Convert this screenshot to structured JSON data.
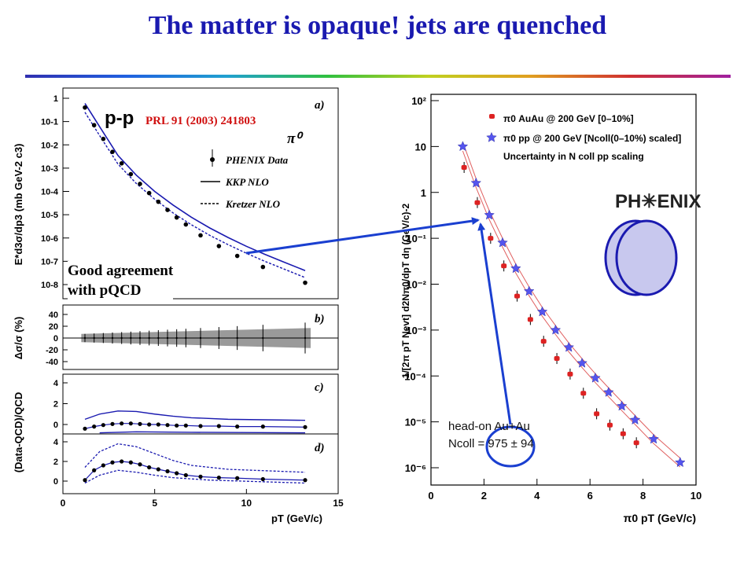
{
  "title": "The matter is opaque! jets are quenched",
  "left_panel": {
    "label_pp": "p-p",
    "label_ref": "PRL 91 (2003) 241803",
    "label_pi0": "π⁰",
    "legend": [
      "PHENIX Data",
      "KKP NLO",
      "Kretzer NLO"
    ],
    "panel_labels": [
      "a)",
      "b)",
      "c)",
      "d)"
    ],
    "xlabel": "pT (GeV/c)",
    "ylabel_a": "E*d3σ/dp3 (mb GeV-2 c3)",
    "ylabel_b": "Δσ/σ (%)",
    "ylabel_cd": "(Data-QCD)/QCD",
    "xticks": [
      "0",
      "5",
      "10",
      "15"
    ],
    "yticks_a": [
      "1",
      "10-1",
      "10-2",
      "10-3",
      "10-4",
      "10-5",
      "10-6",
      "10-7",
      "10-8"
    ],
    "yticks_b": [
      "40",
      "20",
      "0",
      "-20",
      "-40"
    ],
    "yticks_c": [
      "4",
      "2",
      "0"
    ],
    "yticks_d": [
      "4",
      "2",
      "0"
    ]
  },
  "note": {
    "line1": "Good agreement",
    "line2": "with pQCD"
  },
  "right_panel": {
    "legend": [
      "π0 AuAu @ 200 GeV [0–10%]",
      "π0 pp @ 200 GeV [Ncoll(0–10%) scaled]",
      "Uncertainty in N coll pp scaling"
    ],
    "logo": "PH✳ENIX",
    "xlabel": "π0 pT (GeV/c)",
    "ylabel": "1/[2π pT Nevt] d2Nπ0/dpT dη (GeV/c)-2",
    "xticks": [
      "0",
      "2",
      "4",
      "6",
      "8",
      "10"
    ],
    "yticks": [
      "10²",
      "10",
      "1",
      "10⁻¹",
      "10⁻²",
      "10⁻³",
      "10⁻⁴",
      "10⁻⁵",
      "10⁻⁶"
    ]
  },
  "headon": {
    "line1": "head-on Au+Au",
    "line2": "Ncoll = 975 ± 94"
  },
  "colors": {
    "title": "#1a1ab0",
    "arrow": "#1a3fd0",
    "auau": "#dd2222",
    "pp": "#5555ee",
    "curve": "#1a1ab0",
    "band": "#9a9a9a"
  },
  "chart_data": [
    {
      "type": "scatter",
      "title": "",
      "xlabel": "pT (GeV/c)",
      "ylabel": "E*d3σ/dp3 (mb GeV-2 c3)",
      "y_scale": "log",
      "xlim": [
        0,
        15
      ],
      "ylim": [
        1e-08,
        1
      ],
      "series": [
        {
          "name": "PHENIX Data",
          "x": [
            1.2,
            1.7,
            2.2,
            2.7,
            3.2,
            3.7,
            4.2,
            4.7,
            5.2,
            5.7,
            6.2,
            6.7,
            7.5,
            8.5,
            9.5,
            10.9,
            13.2
          ],
          "values": [
            0.4,
            0.07,
            0.018,
            0.005,
            0.0016,
            0.00055,
            0.00021,
            8.5e-05,
            3.6e-05,
            1.6e-05,
            7.6e-06,
            3.8e-06,
            1.3e-06,
            4.5e-07,
            1.7e-07,
            5.7e-08,
            1.2e-08
          ]
        },
        {
          "name": "KKP NLO",
          "x": [
            1.2,
            2,
            3,
            4,
            5,
            6,
            7,
            8,
            9,
            10,
            11,
            12,
            13.2
          ],
          "values": [
            0.6,
            0.06,
            0.0035,
            0.0005,
            0.0001,
            2.6e-05,
            7.8e-06,
            2.7e-06,
            1.05e-06,
            4.4e-07,
            2e-07,
            9.5e-08,
            4e-08
          ]
        },
        {
          "name": "Kretzer NLO",
          "x": [
            1.2,
            2,
            3,
            4,
            5,
            6,
            7,
            8,
            9,
            10,
            11,
            12,
            13.2
          ],
          "values": [
            0.25,
            0.025,
            0.0015,
            0.00022,
            4.6e-05,
            1.2e-05,
            3.7e-06,
            1.3e-06,
            5.2e-07,
            2.2e-07,
            1e-07,
            4.8e-08,
            2e-08
          ]
        }
      ]
    },
    {
      "type": "line",
      "title": "",
      "xlabel": "π0 pT (GeV/c)",
      "ylabel": "1/[2π pT Nevt] d2Nπ0/dpT dη (GeV/c)-2",
      "y_scale": "log",
      "xlim": [
        0,
        10
      ],
      "ylim": [
        1e-06,
        100
      ],
      "series": [
        {
          "name": "π0 AuAu @ 200 GeV [0–10%]",
          "x": [
            1.25,
            1.75,
            2.25,
            2.75,
            3.25,
            3.75,
            4.25,
            4.75,
            5.25,
            5.75,
            6.25,
            6.75,
            7.25,
            7.75
          ],
          "values": [
            3.5,
            0.6,
            0.1,
            0.025,
            0.0055,
            0.0017,
            0.00057,
            0.00024,
            0.00011,
            4.2e-05,
            1.5e-05,
            8.5e-06,
            5.5e-06,
            3.5e-06
          ]
        },
        {
          "name": "π0 pp @ 200 GeV [Ncoll(0–10%) scaled]",
          "x": [
            1.2,
            1.7,
            2.2,
            2.7,
            3.2,
            3.7,
            4.2,
            4.7,
            5.2,
            5.7,
            6.2,
            6.7,
            7.2,
            7.7,
            8.4,
            9.4
          ],
          "values": [
            10,
            1.6,
            0.32,
            0.08,
            0.022,
            0.007,
            0.0025,
            0.001,
            0.00042,
            0.00019,
            9e-05,
            4.4e-05,
            2.2e-05,
            1.1e-05,
            4.2e-06,
            1.3e-06
          ]
        }
      ]
    }
  ]
}
